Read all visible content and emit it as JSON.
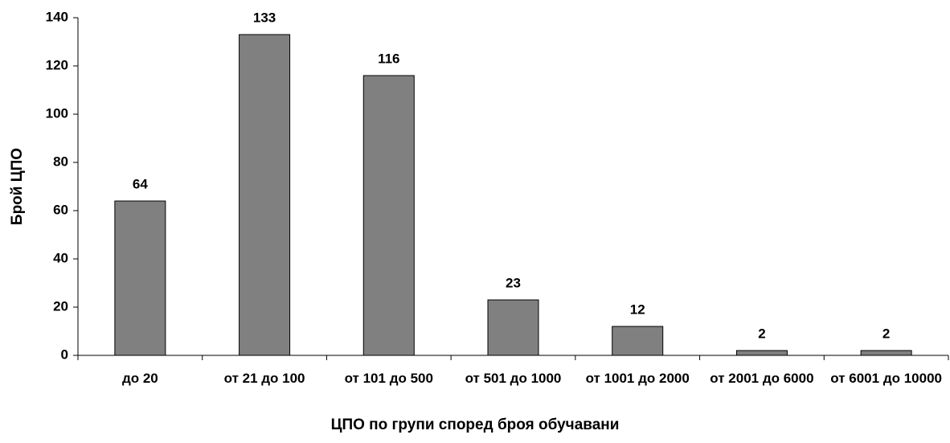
{
  "chart_data": {
    "type": "bar",
    "x_label": "ЦПО по групи според броя обучавани",
    "y_label": "Брой ЦПО",
    "categories": [
      "до 20",
      "от 21 до 100",
      "от 101 до 500",
      "от 501 до 1000",
      "от 1001 до 2000",
      "от 2001 до 6000",
      "от 6001 до 10000"
    ],
    "values": [
      64,
      133,
      116,
      23,
      12,
      2,
      2
    ],
    "color": "#808080",
    "ylim": [
      0,
      140
    ],
    "yticks": [
      0,
      20,
      40,
      60,
      80,
      100,
      120,
      140
    ],
    "grid": false
  }
}
